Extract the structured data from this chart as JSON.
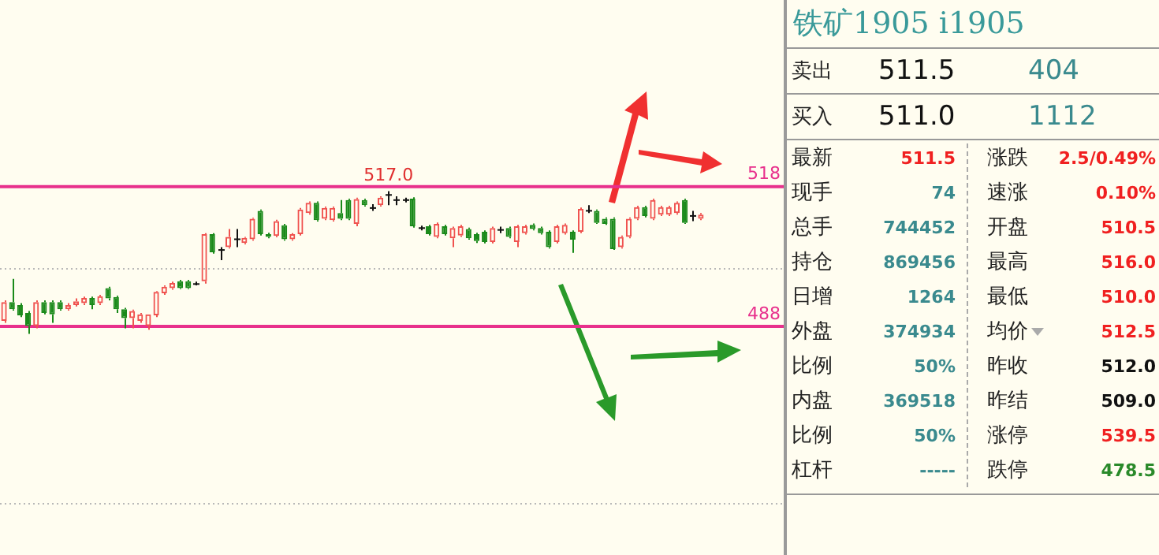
{
  "chart_data": [
    {
      "type": "candlestick",
      "categories": [
        null,
        null,
        null,
        null,
        null,
        null,
        null,
        null,
        null,
        null,
        null,
        null,
        null,
        null,
        null,
        null,
        null,
        null,
        null,
        null,
        null,
        null,
        null,
        null,
        null,
        null,
        null,
        null,
        null,
        null,
        null,
        null,
        null,
        null,
        null,
        null,
        null,
        null,
        null,
        null,
        null,
        null,
        null,
        null,
        null,
        null,
        null,
        null,
        null,
        null,
        null,
        null,
        null,
        null,
        null,
        null,
        null,
        null,
        null,
        null,
        null,
        null,
        null,
        null,
        null,
        null,
        null,
        null,
        null,
        null,
        null,
        null,
        null,
        null,
        null,
        null,
        null,
        null,
        null,
        null,
        null,
        null,
        null,
        null,
        null,
        null,
        null,
        null
      ],
      "ohlc": [
        [
          489.2,
          493.6,
          488.8,
          493.2
        ],
        [
          493.2,
          498.2,
          491.4,
          491.7
        ],
        [
          492.6,
          493.0,
          490.0,
          490.4
        ],
        [
          490.9,
          491.3,
          486.4,
          488.1
        ],
        [
          488.1,
          493.6,
          487.6,
          493.2
        ],
        [
          493.2,
          493.6,
          490.6,
          490.9
        ],
        [
          493.2,
          493.6,
          488.8,
          490.6
        ],
        [
          493.2,
          493.6,
          491.4,
          491.7
        ],
        [
          491.7,
          493.0,
          491.4,
          492.6
        ],
        [
          492.6,
          494.0,
          492.3,
          493.4
        ],
        [
          493.0,
          494.4,
          492.6,
          494.1
        ],
        [
          494.1,
          494.4,
          491.7,
          492.6
        ],
        [
          493.0,
          494.8,
          492.6,
          494.5
        ],
        [
          496.2,
          496.5,
          493.6,
          494.0
        ],
        [
          494.3,
          494.6,
          490.9,
          491.7
        ],
        [
          491.7,
          492.0,
          487.6,
          489.8
        ],
        [
          489.8,
          491.6,
          487.6,
          491.3
        ],
        [
          489.2,
          490.9,
          488.8,
          490.6
        ],
        [
          488.1,
          490.6,
          487.3,
          490.6
        ],
        [
          490.4,
          495.6,
          490.0,
          495.4
        ],
        [
          495.1,
          496.8,
          494.8,
          496.5
        ],
        [
          496.2,
          497.6,
          495.9,
          497.3
        ],
        [
          497.7,
          498.0,
          496.0,
          496.2
        ],
        [
          497.7,
          498.0,
          496.0,
          496.2
        ],
        [
          497.1,
          497.6,
          496.8,
          497.1
        ],
        [
          497.7,
          508.0,
          497.2,
          507.8
        ],
        [
          507.8,
          508.0,
          503.6,
          503.9
        ],
        [
          504.4,
          505.0,
          502.2,
          504.4
        ],
        [
          505.0,
          508.9,
          504.7,
          507.2
        ],
        [
          506.7,
          508.9,
          505.0,
          506.7
        ],
        [
          505.9,
          507.2,
          505.6,
          507.0
        ],
        [
          506.7,
          511.3,
          506.4,
          511.1
        ],
        [
          512.8,
          513.1,
          507.5,
          507.8
        ],
        [
          507.8,
          508.1,
          506.9,
          507.2
        ],
        [
          507.4,
          510.9,
          507.1,
          510.6
        ],
        [
          509.7,
          510.0,
          506.4,
          506.7
        ],
        [
          506.7,
          508.0,
          506.4,
          507.8
        ],
        [
          507.8,
          513.4,
          507.5,
          513.1
        ],
        [
          512.3,
          514.8,
          512.0,
          514.5
        ],
        [
          514.5,
          514.8,
          510.5,
          510.8
        ],
        [
          511.1,
          513.7,
          510.8,
          513.4
        ],
        [
          510.8,
          513.7,
          510.5,
          513.4
        ],
        [
          512.3,
          515.1,
          510.8,
          511.1
        ],
        [
          515.1,
          515.4,
          510.8,
          511.1
        ],
        [
          510.0,
          515.6,
          509.5,
          515.3
        ],
        [
          515.1,
          515.4,
          513.7,
          514.0
        ],
        [
          513.4,
          514.2,
          512.8,
          513.4
        ],
        [
          514.0,
          515.9,
          513.7,
          515.6
        ],
        [
          516.2,
          517.0,
          514.0,
          516.2
        ],
        [
          515.1,
          515.9,
          514.0,
          515.1
        ],
        [
          515.1,
          515.6,
          514.6,
          515.1
        ],
        [
          515.4,
          515.7,
          509.2,
          509.5
        ],
        [
          509.1,
          509.6,
          508.6,
          509.1
        ],
        [
          509.5,
          509.8,
          507.5,
          507.8
        ],
        [
          507.2,
          510.3,
          506.9,
          510.0
        ],
        [
          509.5,
          509.8,
          507.5,
          507.8
        ],
        [
          506.9,
          509.4,
          505.0,
          509.1
        ],
        [
          507.5,
          509.8,
          507.2,
          509.5
        ],
        [
          508.9,
          509.2,
          506.6,
          506.9
        ],
        [
          507.8,
          508.1,
          505.9,
          506.3
        ],
        [
          508.3,
          508.6,
          505.8,
          506.1
        ],
        [
          506.1,
          509.4,
          505.8,
          509.1
        ],
        [
          508.7,
          509.4,
          508.0,
          508.7
        ],
        [
          509.1,
          509.4,
          506.9,
          507.2
        ],
        [
          506.1,
          509.8,
          505.0,
          509.5
        ],
        [
          508.0,
          509.8,
          507.7,
          509.5
        ],
        [
          509.8,
          510.1,
          508.6,
          508.9
        ],
        [
          509.1,
          509.4,
          507.7,
          508.0
        ],
        [
          508.3,
          508.6,
          504.7,
          505.0
        ],
        [
          506.1,
          509.8,
          505.8,
          509.5
        ],
        [
          508.0,
          510.1,
          507.7,
          509.8
        ],
        [
          508.3,
          508.6,
          503.8,
          506.6
        ],
        [
          508.3,
          513.5,
          508.0,
          513.2
        ],
        [
          512.8,
          514.0,
          512.3,
          512.8
        ],
        [
          512.8,
          513.1,
          510.0,
          510.2
        ],
        [
          511.1,
          511.4,
          509.8,
          510.0
        ],
        [
          511.1,
          511.4,
          504.4,
          504.6
        ],
        [
          505.0,
          507.5,
          504.7,
          507.2
        ],
        [
          507.2,
          511.4,
          506.9,
          511.1
        ],
        [
          511.1,
          513.9,
          510.8,
          513.6
        ],
        [
          513.6,
          513.9,
          511.4,
          511.7
        ],
        [
          511.1,
          515.4,
          510.8,
          515.1
        ],
        [
          512.0,
          513.9,
          511.7,
          513.6
        ],
        [
          512.0,
          513.9,
          511.7,
          513.6
        ],
        [
          512.3,
          514.8,
          512.0,
          514.5
        ],
        [
          515.1,
          515.4,
          510.0,
          510.2
        ],
        [
          511.7,
          512.8,
          510.6,
          511.7
        ],
        [
          511.1,
          512.3,
          510.8,
          512.0
        ]
      ],
      "ylim": [
        439,
        558
      ],
      "yticks": [
        {
          "value": 500.5,
          "label": null
        },
        {
          "value": 450,
          "label": null
        }
      ],
      "grid": "y",
      "tick_labels": false,
      "legend": false,
      "ref_lines": [
        {
          "axis": "y",
          "value": 518,
          "label": "518",
          "color": "#e8308c"
        },
        {
          "axis": "y",
          "value": 488,
          "label": "488",
          "color": "#e8308c"
        }
      ],
      "annotations": [
        {
          "text": "517.0",
          "y": 517
        }
      ]
    },
    {
      "type": "other",
      "title": "铁矿1905 i1905",
      "annotations": [
        "卖出",
        "511.5",
        "404",
        "买入",
        "511.0",
        "1112",
        "最新",
        "511.5",
        "涨跌",
        "2.5/0.49%",
        "现手",
        "74",
        "速涨",
        "0.10%",
        "总手",
        "744452",
        "开盘",
        "510.5",
        "持仓",
        "869456",
        "最高",
        "516.0",
        "日增",
        "1264",
        "最低",
        "510.0",
        "外盘",
        "374934",
        "均价",
        "512.5",
        "比例",
        "50%",
        "昨收",
        "512.0",
        "内盘",
        "369518",
        "昨结",
        "509.0",
        "比例",
        "50%",
        "涨停",
        "539.5",
        "杠杆",
        "-----",
        "跌停",
        "478.5"
      ]
    }
  ]
}
